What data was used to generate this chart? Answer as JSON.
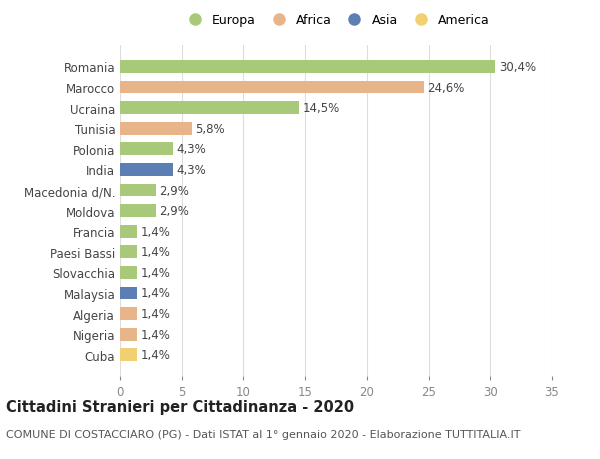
{
  "categories": [
    "Romania",
    "Marocco",
    "Ucraina",
    "Tunisia",
    "Polonia",
    "India",
    "Macedonia d/N.",
    "Moldova",
    "Francia",
    "Paesi Bassi",
    "Slovacchia",
    "Malaysia",
    "Algeria",
    "Nigeria",
    "Cuba"
  ],
  "values": [
    30.4,
    24.6,
    14.5,
    5.8,
    4.3,
    4.3,
    2.9,
    2.9,
    1.4,
    1.4,
    1.4,
    1.4,
    1.4,
    1.4,
    1.4
  ],
  "labels": [
    "30,4%",
    "24,6%",
    "14,5%",
    "5,8%",
    "4,3%",
    "4,3%",
    "2,9%",
    "2,9%",
    "1,4%",
    "1,4%",
    "1,4%",
    "1,4%",
    "1,4%",
    "1,4%",
    "1,4%"
  ],
  "colors": [
    "#a8c87a",
    "#e8b48a",
    "#a8c87a",
    "#e8b48a",
    "#a8c87a",
    "#5b7fb5",
    "#a8c87a",
    "#a8c87a",
    "#a8c87a",
    "#a8c87a",
    "#a8c87a",
    "#5b7fb5",
    "#e8b48a",
    "#e8b48a",
    "#f0d070"
  ],
  "continent": [
    "Europa",
    "Africa",
    "Europa",
    "Africa",
    "Europa",
    "Asia",
    "Europa",
    "Europa",
    "Europa",
    "Europa",
    "Europa",
    "Asia",
    "Africa",
    "Africa",
    "America"
  ],
  "legend_labels": [
    "Europa",
    "Africa",
    "Asia",
    "America"
  ],
  "legend_colors": [
    "#a8c87a",
    "#e8b48a",
    "#5b7fb5",
    "#f0d070"
  ],
  "xlim": [
    0,
    35
  ],
  "xticks": [
    0,
    5,
    10,
    15,
    20,
    25,
    30,
    35
  ],
  "title": "Cittadini Stranieri per Cittadinanza - 2020",
  "subtitle": "COMUNE DI COSTACCIARO (PG) - Dati ISTAT al 1° gennaio 2020 - Elaborazione TUTTITALIA.IT",
  "bg_color": "#ffffff",
  "grid_color": "#dddddd",
  "bar_height": 0.62,
  "label_fontsize": 8.5,
  "ytick_fontsize": 8.5,
  "xtick_fontsize": 8.5,
  "title_fontsize": 10.5,
  "subtitle_fontsize": 8.0
}
